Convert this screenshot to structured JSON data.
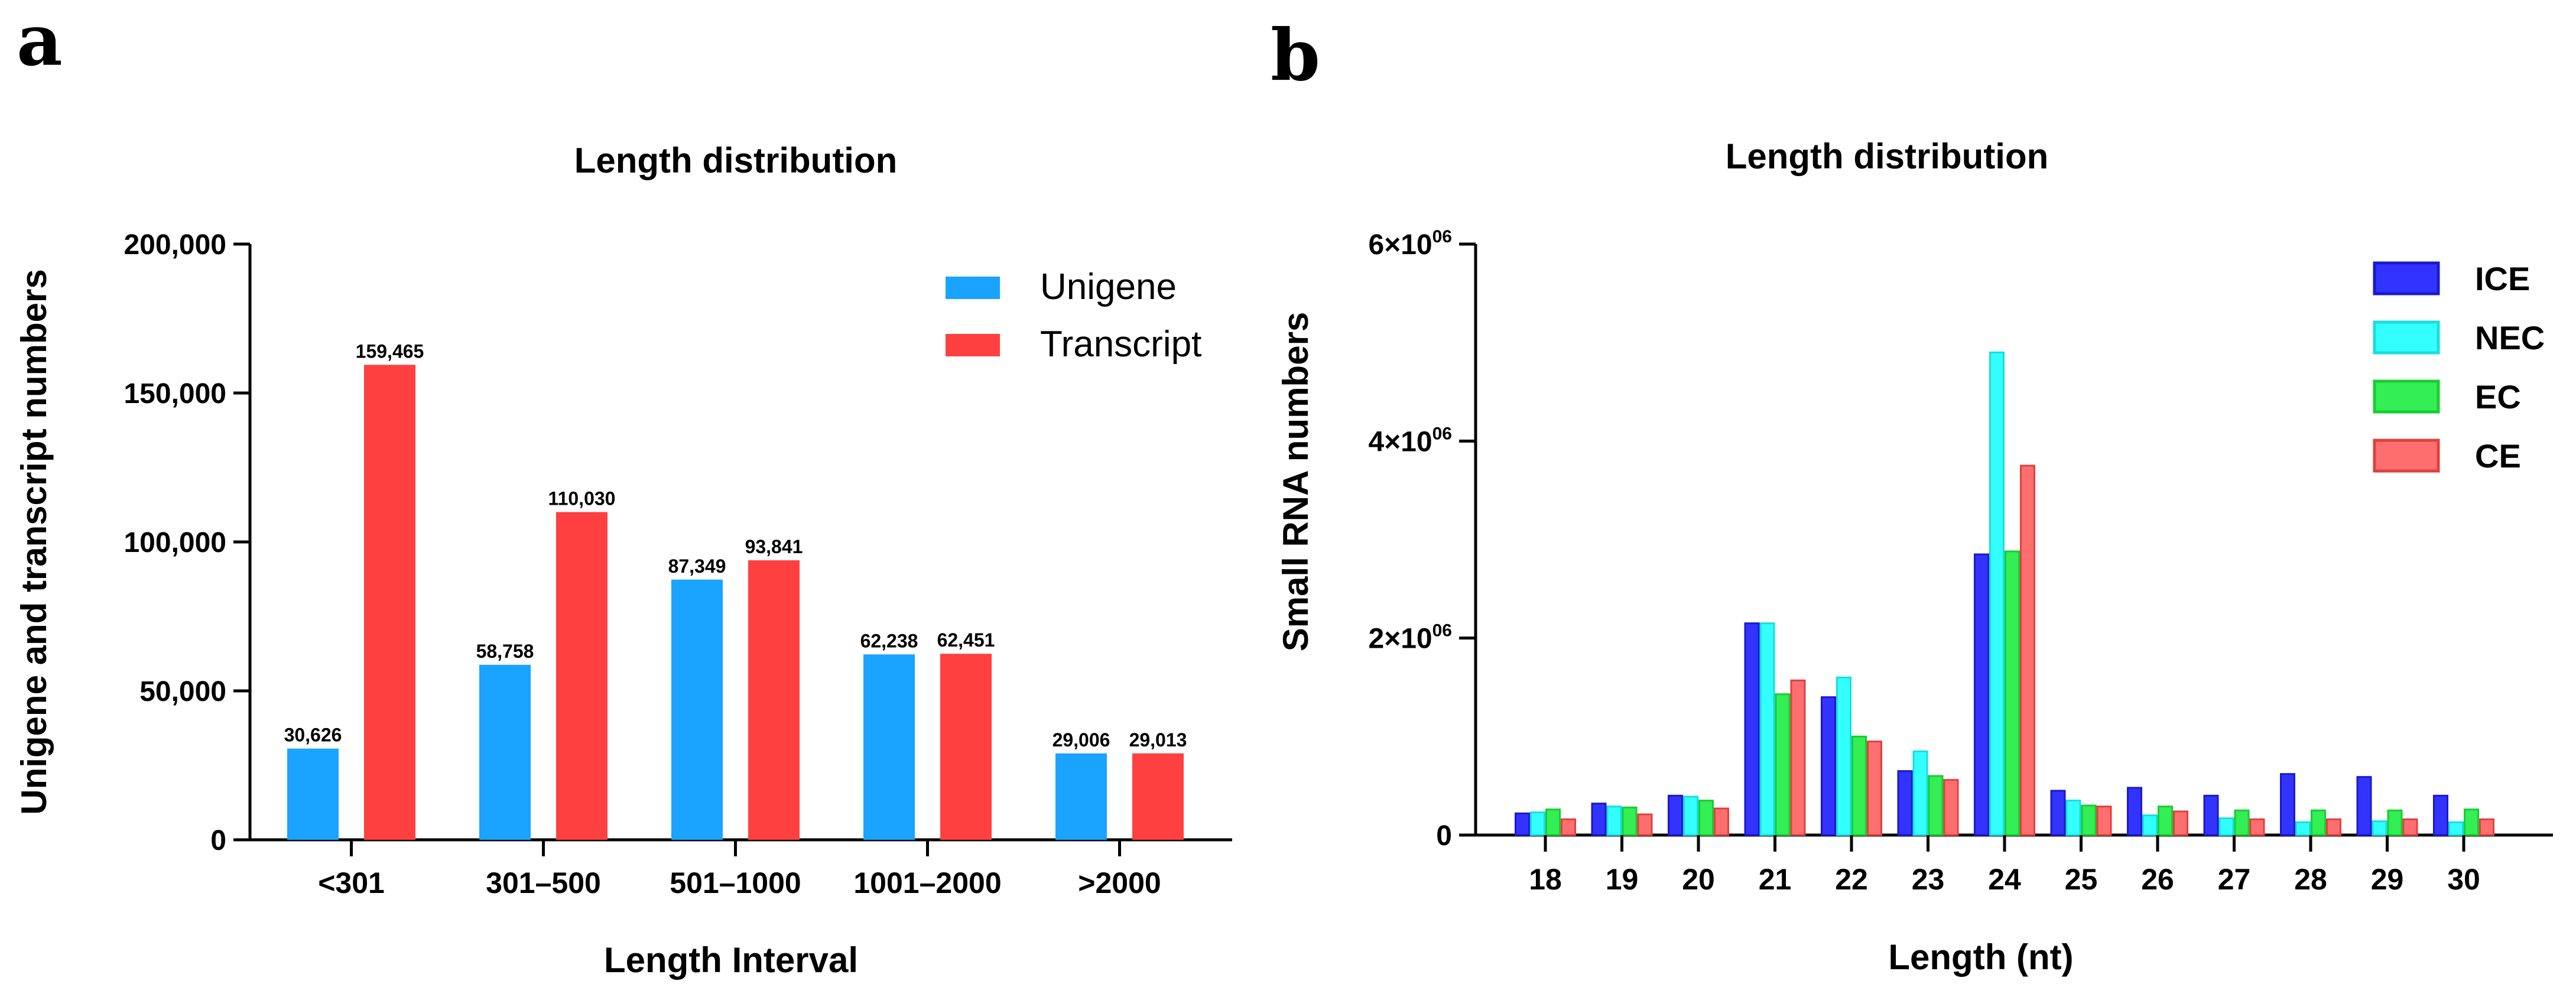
{
  "panels": {
    "a": "a",
    "b": "b"
  },
  "chart_data": [
    {
      "type": "bar",
      "title": "Length distribution",
      "xlabel": "Length Interval",
      "ylabel": "Unigene and transcript numbers",
      "ylim": [
        0,
        200000
      ],
      "yticks": [
        "0",
        "50,000",
        "100,000",
        "150,000",
        "200,000"
      ],
      "ytick_values": [
        0,
        50000,
        100000,
        150000,
        200000
      ],
      "categories": [
        "<301",
        "301–500",
        "501–1000",
        "1001–2000",
        ">2000"
      ],
      "series": [
        {
          "name": "Unigene",
          "color": "#1aa3ff",
          "values": [
            30626,
            58758,
            87349,
            62238,
            29006
          ],
          "labels": [
            "30,626",
            "58,758",
            "87,349",
            "62,238",
            "29,006"
          ]
        },
        {
          "name": "Transcript",
          "color": "#ff4040",
          "values": [
            159465,
            110030,
            93841,
            62451,
            29013
          ],
          "labels": [
            "159,465",
            "110,030",
            "93,841",
            "62,451",
            "29,013"
          ]
        }
      ],
      "legend": "top-right",
      "grid": false
    },
    {
      "type": "bar",
      "title": "Length distribution",
      "xlabel": "Length (nt)",
      "ylabel": "Small RNA numbers",
      "ylim": [
        0,
        6000000
      ],
      "ytick_values": [
        0,
        2000000,
        4000000,
        6000000
      ],
      "yticks": [
        {
          "base": "0",
          "exp": ""
        },
        {
          "base": "2×10",
          "exp": "06"
        },
        {
          "base": "4×10",
          "exp": "06"
        },
        {
          "base": "6×10",
          "exp": "06"
        }
      ],
      "categories": [
        "18",
        "19",
        "20",
        "21",
        "22",
        "23",
        "24",
        "25",
        "26",
        "27",
        "28",
        "29",
        "30"
      ],
      "series": [
        {
          "name": "ICE",
          "color": "#3333ff",
          "stroke": "#1a1acc",
          "values": [
            220000,
            320000,
            400000,
            2150000,
            1400000,
            650000,
            2850000,
            450000,
            480000,
            400000,
            620000,
            590000,
            400000
          ]
        },
        {
          "name": "NEC",
          "color": "#33ffff",
          "stroke": "#1adddd",
          "values": [
            230000,
            290000,
            390000,
            2150000,
            1600000,
            850000,
            4900000,
            350000,
            200000,
            170000,
            130000,
            140000,
            130000
          ]
        },
        {
          "name": "EC",
          "color": "#33ee55",
          "stroke": "#1acc33",
          "values": [
            260000,
            280000,
            350000,
            1430000,
            1000000,
            600000,
            2880000,
            300000,
            290000,
            250000,
            250000,
            250000,
            260000
          ]
        },
        {
          "name": "CE",
          "color": "#ff6f6f",
          "stroke": "#e04040",
          "values": [
            160000,
            210000,
            270000,
            1570000,
            950000,
            560000,
            3750000,
            290000,
            240000,
            160000,
            160000,
            160000,
            160000
          ]
        }
      ],
      "legend": "top-right",
      "grid": false
    }
  ]
}
